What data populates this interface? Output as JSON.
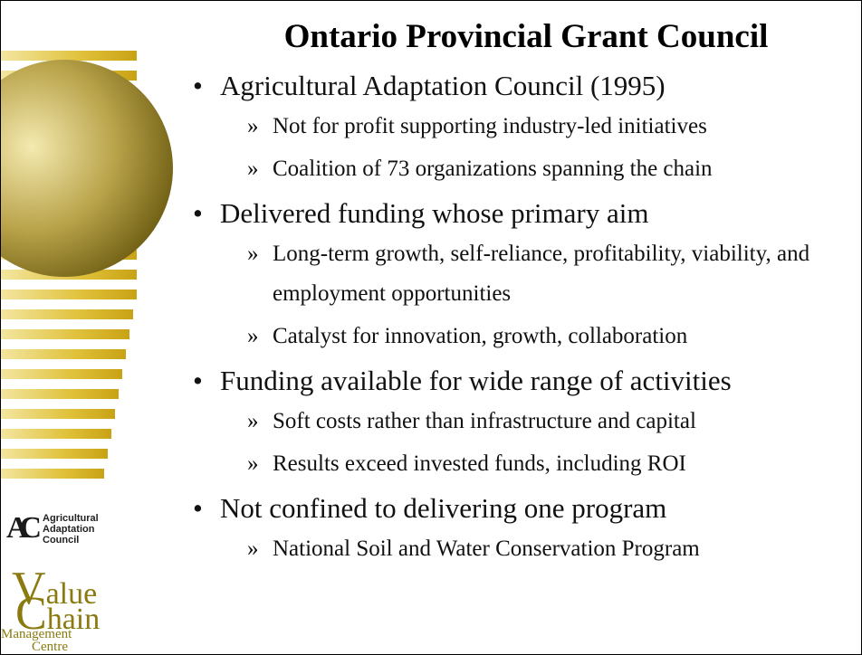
{
  "title": "Ontario Provincial Grant Council",
  "bullets": [
    {
      "text": "Agricultural Adaptation Council (1995)",
      "subs": [
        "Not for profit supporting industry-led initiatives",
        "Coalition of 73 organizations spanning the chain"
      ]
    },
    {
      "text": "Delivered funding whose primary aim",
      "subs": [
        "Long-term growth, self-reliance, profitability, viability, and employment opportunities",
        "Catalyst for innovation, growth, collaboration"
      ]
    },
    {
      "text": "Funding available for wide range of activities",
      "subs": [
        "Soft costs rather than infrastructure and capital",
        "Results exceed invested funds, including ROI"
      ]
    },
    {
      "text": "Not confined to delivering one program",
      "subs": [
        "National Soil and Water Conservation Program"
      ]
    }
  ],
  "logos": {
    "aac": {
      "mark": "AC",
      "lines": [
        "Agricultural",
        "Adaptation",
        "Council"
      ]
    },
    "vcmc": {
      "initial1": "V",
      "word1": "alue",
      "initial2": "C",
      "word2": "hain",
      "line3": "Management",
      "line4": "Centre"
    }
  }
}
